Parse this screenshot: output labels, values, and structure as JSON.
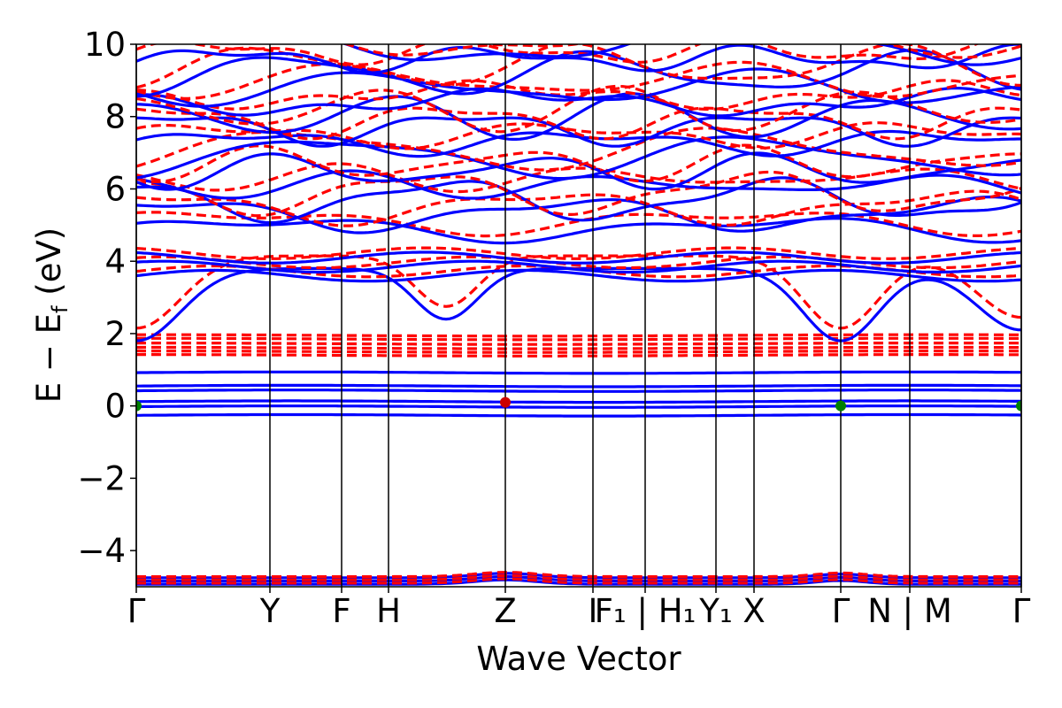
{
  "chart_data": {
    "type": "line",
    "title": "",
    "xlabel": "Wave Vector",
    "ylabel": "E − E_f (eV)",
    "ylabel_parts": {
      "main": "E − E",
      "sub": "f",
      "unit": "(eV)"
    },
    "ylim": [
      -5,
      10
    ],
    "yticks": [
      10,
      8,
      6,
      4,
      2,
      0,
      -2,
      -4
    ],
    "ytick_labels": [
      "10",
      "8",
      "6",
      "4",
      "2",
      "0",
      "−2",
      "−4"
    ],
    "kpoint_positions": [
      0,
      0.151,
      0.232,
      0.285,
      0.417,
      0.516,
      0.575,
      0.655,
      0.698,
      0.796,
      0.874,
      1.0
    ],
    "kpoint_labels": [
      "Γ",
      "Y",
      "F",
      "H",
      "Z",
      "I",
      "F₁ | H₁",
      "Y₁",
      "X",
      "Γ",
      "N | M",
      "Γ"
    ],
    "grid": false,
    "legend": "none",
    "series": [
      {
        "style": "solid",
        "color": "#0000ff"
      },
      {
        "style": "dashed",
        "color": "#ff0000"
      }
    ],
    "flat_bands_solid": [
      0.92,
      0.55,
      0.42,
      0.12,
      -0.02,
      -0.26
    ],
    "flat_bands_dashed": [
      1.95,
      1.85,
      1.72,
      1.6,
      1.5,
      1.4
    ],
    "markers": [
      {
        "x": 0,
        "y": 0,
        "color": "#008000"
      },
      {
        "x": 0.417,
        "y": 0.1,
        "color": "#cc0000"
      },
      {
        "x": 0.796,
        "y": 0,
        "color": "#008000"
      },
      {
        "x": 1.0,
        "y": 0,
        "color": "#008000"
      }
    ]
  }
}
